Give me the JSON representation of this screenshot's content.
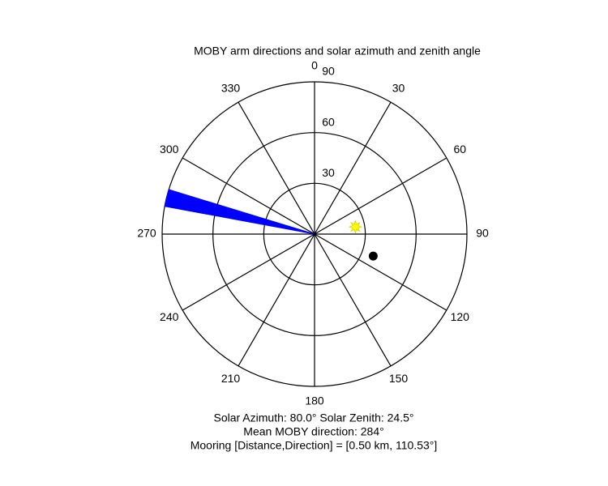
{
  "chart_data": {
    "type": "polar",
    "title": "MOBY arm directions and solar azimuth and zenith angle",
    "rlim": [
      0,
      90
    ],
    "rticks": [
      30,
      60,
      90
    ],
    "thetaticks": [
      0,
      30,
      60,
      90,
      120,
      150,
      180,
      210,
      240,
      270,
      300,
      330
    ],
    "direction": "clockwise",
    "zero": "north",
    "wedge": {
      "theta": [
        280.5,
        287
      ],
      "r": 90,
      "color": "#0000ff"
    },
    "points": [
      {
        "theta": 80,
        "r": 24.5,
        "color": "#ffff00",
        "marker": "star"
      },
      {
        "theta": 110.53,
        "r": 37,
        "color": "#000000",
        "marker": "circle"
      }
    ],
    "annotations": [
      "Solar Azimuth: 80.0°   Solar Zenith: 24.5°",
      "Mean MOBY direction: 284°",
      "Mooring [Distance,Direction] = [0.50 km, 110.53°]"
    ]
  }
}
